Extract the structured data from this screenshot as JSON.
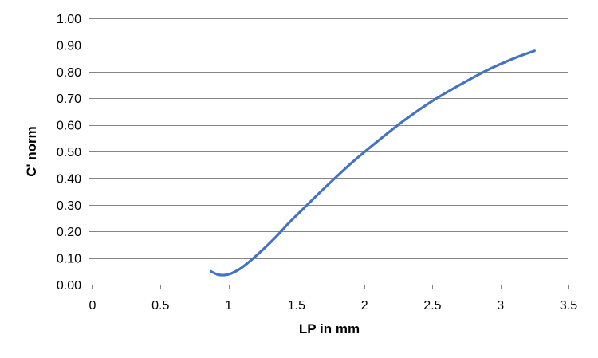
{
  "chart_data": {
    "type": "line",
    "title": "",
    "xlabel": "LP in mm",
    "ylabel": "C' norm",
    "xlim": [
      0,
      3.5
    ],
    "ylim": [
      0,
      1.0
    ],
    "x_ticks": [
      0,
      0.5,
      1,
      1.5,
      2,
      2.5,
      3,
      3.5
    ],
    "x_tick_labels": [
      "0",
      "0.5",
      "1",
      "1.5",
      "2",
      "2.5",
      "3",
      "3.5"
    ],
    "y_ticks": [
      0,
      0.1,
      0.2,
      0.3,
      0.4,
      0.5,
      0.6,
      0.7,
      0.8,
      0.9,
      1.0
    ],
    "y_tick_labels": [
      "0.00",
      "0.10",
      "0.20",
      "0.30",
      "0.40",
      "0.50",
      "0.60",
      "0.70",
      "0.80",
      "0.90",
      "1.00"
    ],
    "grid": "horizontal",
    "legend": "none",
    "series": [
      {
        "color": "#4472C4",
        "x": [
          0.87,
          0.92,
          0.97,
          1.02,
          1.08,
          1.15,
          1.25,
          1.35,
          1.45,
          1.55,
          1.7,
          1.9,
          2.1,
          2.3,
          2.5,
          2.7,
          2.9,
          3.1,
          3.25
        ],
        "y": [
          0.05,
          0.038,
          0.036,
          0.042,
          0.058,
          0.085,
          0.13,
          0.18,
          0.235,
          0.285,
          0.36,
          0.455,
          0.54,
          0.62,
          0.69,
          0.75,
          0.805,
          0.85,
          0.878
        ]
      }
    ]
  }
}
